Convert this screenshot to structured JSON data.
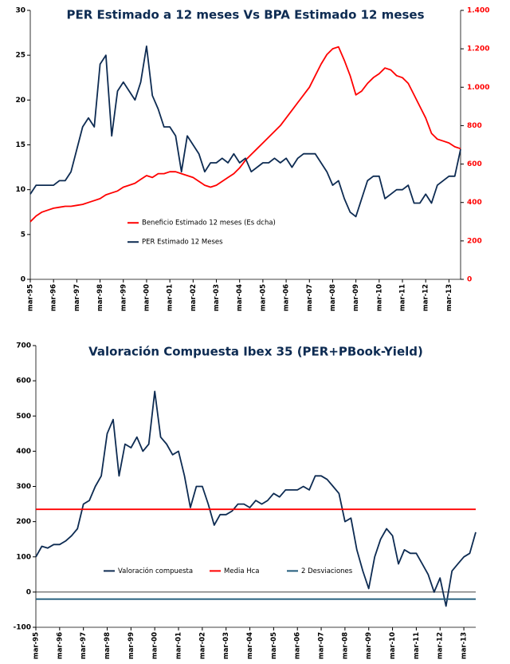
{
  "chart_data": [
    {
      "type": "line",
      "title": "PER Estimado a 12 meses Vs BPA Estimado 12 meses",
      "legend": "center left",
      "categories": [
        "mar-95",
        null,
        null,
        null,
        "mar-96",
        null,
        null,
        null,
        "mar-97",
        null,
        null,
        null,
        "mar-98",
        null,
        null,
        null,
        "mar-99",
        null,
        null,
        null,
        "mar-00",
        null,
        null,
        null,
        "mar-01",
        null,
        null,
        null,
        "mar-02",
        null,
        null,
        null,
        "mar-03",
        null,
        null,
        null,
        "mar-04",
        null,
        null,
        null,
        "mar-05",
        null,
        null,
        null,
        "mar-06",
        null,
        null,
        null,
        "mar-07",
        null,
        null,
        null,
        "mar-08",
        null,
        null,
        null,
        "mar-09",
        null,
        null,
        null,
        "mar-10",
        null,
        null,
        null,
        "mar-11",
        null,
        null,
        null,
        "mar-12",
        null,
        null,
        null,
        "mar-13",
        null,
        null
      ],
      "series": [
        {
          "name": "Beneficio Estimado 12 meses (Es dcha)",
          "color": "#ff0000",
          "axis": "y2",
          "values": [
            300,
            330,
            350,
            360,
            370,
            375,
            380,
            380,
            385,
            390,
            400,
            410,
            420,
            440,
            450,
            460,
            480,
            490,
            500,
            520,
            540,
            530,
            550,
            550,
            560,
            560,
            550,
            540,
            530,
            510,
            490,
            480,
            490,
            510,
            530,
            550,
            580,
            620,
            650,
            680,
            710,
            740,
            770,
            800,
            840,
            880,
            920,
            960,
            1000,
            1060,
            1120,
            1170,
            1200,
            1210,
            1140,
            1060,
            960,
            980,
            1020,
            1050,
            1070,
            1100,
            1090,
            1060,
            1050,
            1020,
            960,
            900,
            840,
            760,
            730,
            720,
            710,
            690,
            680
          ]
        },
        {
          "name": "PER Estimado 12 Meses",
          "color": "#0d2b52",
          "values": [
            9.5,
            10.5,
            10.5,
            10.5,
            10.5,
            11,
            11,
            12,
            14.5,
            17,
            18,
            17,
            24,
            25,
            16,
            21,
            22,
            21,
            20,
            22,
            26,
            20.5,
            19,
            17,
            17,
            16,
            12,
            16,
            15,
            14,
            12,
            13,
            13,
            13.5,
            13,
            14,
            13,
            13.5,
            12,
            12.5,
            13,
            13,
            13.5,
            13,
            13.5,
            12.5,
            13.5,
            14,
            14,
            14,
            13,
            12,
            10.5,
            11,
            9,
            7.5,
            7,
            9,
            11,
            11.5,
            11.5,
            9,
            9.5,
            10,
            10,
            10.5,
            8.5,
            8.5,
            9.5,
            8.5,
            10.5,
            11,
            11.5,
            11.5,
            14.5
          ]
        }
      ],
      "ylim": [
        0,
        30
      ],
      "yticks": [
        0,
        5,
        10,
        15,
        20,
        25,
        30
      ],
      "y2lim": [
        0,
        1400
      ],
      "y2ticks": [
        0,
        200,
        400,
        600,
        800,
        {
          "value": 1000,
          "label": "1.000"
        },
        {
          "value": 1200,
          "label": "1.200"
        },
        {
          "value": 1400,
          "label": "1.400"
        }
      ]
    },
    {
      "type": "line",
      "title": "Valoración Compuesta Ibex 35 (PER+PBook-Yield)",
      "legend": "lower center",
      "categories": [
        "mar-95",
        null,
        null,
        null,
        "mar-96",
        null,
        null,
        null,
        "mar-97",
        null,
        null,
        null,
        "mar-98",
        null,
        null,
        null,
        "mar-99",
        null,
        null,
        null,
        "mar-00",
        null,
        null,
        null,
        "mar-01",
        null,
        null,
        null,
        "mar-02",
        null,
        null,
        null,
        "mar-03",
        null,
        null,
        null,
        "mar-04",
        null,
        null,
        null,
        "mar-05",
        null,
        null,
        null,
        "mar-06",
        null,
        null,
        null,
        "mar-07",
        null,
        null,
        null,
        "mar-08",
        null,
        null,
        null,
        "mar-09",
        null,
        null,
        null,
        "mar-10",
        null,
        null,
        null,
        "mar-11",
        null,
        null,
        null,
        "mar-12",
        null,
        null,
        null,
        "mar-13",
        null,
        null
      ],
      "series": [
        {
          "name": "Valoración compuesta",
          "color": "#0d2b52",
          "values": [
            100,
            130,
            125,
            135,
            135,
            145,
            160,
            180,
            250,
            260,
            300,
            330,
            450,
            490,
            330,
            420,
            410,
            440,
            400,
            420,
            570,
            440,
            420,
            390,
            400,
            330,
            240,
            300,
            300,
            250,
            190,
            220,
            220,
            230,
            250,
            250,
            240,
            260,
            250,
            260,
            280,
            270,
            290,
            290,
            290,
            300,
            290,
            330,
            330,
            320,
            300,
            280,
            200,
            210,
            120,
            60,
            10,
            100,
            150,
            180,
            160,
            80,
            120,
            110,
            110,
            80,
            50,
            0,
            40,
            -40,
            60,
            80,
            100,
            110,
            170
          ]
        },
        {
          "name": "Media Hca",
          "color": "#ff0000",
          "values": [
            235,
            235,
            235,
            235,
            235,
            235,
            235,
            235,
            235,
            235,
            235,
            235,
            235,
            235,
            235,
            235,
            235,
            235,
            235,
            235,
            235,
            235,
            235,
            235,
            235,
            235,
            235,
            235,
            235,
            235,
            235,
            235,
            235,
            235,
            235,
            235,
            235,
            235,
            235,
            235,
            235,
            235,
            235,
            235,
            235,
            235,
            235,
            235,
            235,
            235,
            235,
            235,
            235,
            235,
            235,
            235,
            235,
            235,
            235,
            235,
            235,
            235,
            235,
            235,
            235,
            235,
            235,
            235,
            235,
            235,
            235,
            235,
            235,
            235,
            235
          ]
        },
        {
          "name": "2 Desviaciones",
          "color": "#1f5a7a",
          "values": [
            -20,
            -20,
            -20,
            -20,
            -20,
            -20,
            -20,
            -20,
            -20,
            -20,
            -20,
            -20,
            -20,
            -20,
            -20,
            -20,
            -20,
            -20,
            -20,
            -20,
            -20,
            -20,
            -20,
            -20,
            -20,
            -20,
            -20,
            -20,
            -20,
            -20,
            -20,
            -20,
            -20,
            -20,
            -20,
            -20,
            -20,
            -20,
            -20,
            -20,
            -20,
            -20,
            -20,
            -20,
            -20,
            -20,
            -20,
            -20,
            -20,
            -20,
            -20,
            -20,
            -20,
            -20,
            -20,
            -20,
            -20,
            -20,
            -20,
            -20,
            -20,
            -20,
            -20,
            -20,
            -20,
            -20,
            -20,
            -20,
            -20,
            -20,
            -20,
            -20,
            -20,
            -20,
            -20
          ]
        }
      ],
      "ylim": [
        -100,
        700
      ],
      "yticks": [
        -100,
        0,
        100,
        200,
        300,
        400,
        500,
        600,
        700
      ]
    }
  ]
}
